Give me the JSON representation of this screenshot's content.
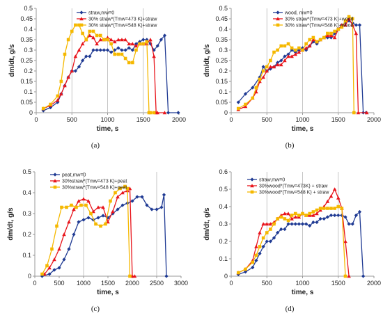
{
  "figure": {
    "panels": [
      {
        "caption": "(a)",
        "xlabel": "time, s",
        "ylabel": "dm/dt, g/s",
        "xlim": [
          0,
          2000
        ],
        "ylim": [
          0,
          0.5
        ],
        "xticks": [
          0,
          500,
          1000,
          1500,
          2000
        ],
        "yticks": [
          0,
          0.05,
          0.1,
          0.15,
          0.2,
          0.25,
          0.3,
          0.35,
          0.4,
          0.45,
          0.5
        ],
        "vlines": [
          500,
          1000,
          1500
        ]
      },
      {
        "caption": "(b)",
        "xlabel": "time, s",
        "ylabel": "dm/dt, g/s",
        "xlim": [
          0,
          2000
        ],
        "ylim": [
          0,
          0.5
        ],
        "xticks": [
          0,
          500,
          1000,
          1500,
          2000
        ],
        "yticks": [
          0,
          0.05,
          0.1,
          0.15,
          0.2,
          0.25,
          0.3,
          0.35,
          0.4,
          0.45,
          0.5
        ],
        "vlines": [
          500,
          1000,
          1500
        ]
      },
      {
        "caption": "(c)",
        "xlabel": "time, s",
        "ylabel": "dm/dt, g/s",
        "xlim": [
          0,
          3000
        ],
        "ylim": [
          0,
          0.5
        ],
        "xticks": [
          0,
          500,
          1000,
          1500,
          2000,
          2500,
          3000
        ],
        "yticks": [
          0,
          0.1,
          0.2,
          0.3,
          0.4,
          0.5
        ],
        "vlines": [
          1000,
          2500
        ]
      },
      {
        "caption": "(d)",
        "xlabel": "time, s",
        "ylabel": "dm/dt, g/s",
        "xlim": [
          0,
          2000
        ],
        "ylim": [
          0,
          0.6
        ],
        "xticks": [
          0,
          500,
          1000,
          1500,
          2000
        ],
        "yticks": [
          0,
          0.1,
          0.2,
          0.3,
          0.4,
          0.5,
          0.6
        ],
        "vlines": [
          500,
          1000,
          1500
        ]
      }
    ]
  },
  "chart_data": [
    {
      "type": "line",
      "caption": "(a)",
      "xlabel": "time, s",
      "ylabel": "dm/dt, g/s",
      "xlim": [
        0,
        2000
      ],
      "ylim": [
        0,
        0.5
      ],
      "legend": "top-right",
      "series": [
        {
          "name": "straw,mw=0",
          "color": "#1f3a93",
          "marker": "diamond",
          "x": [
            100,
            200,
            300,
            350,
            400,
            450,
            500,
            550,
            600,
            650,
            700,
            750,
            800,
            850,
            900,
            950,
            1000,
            1050,
            1100,
            1150,
            1200,
            1250,
            1300,
            1350,
            1400,
            1450,
            1500,
            1550,
            1600,
            1650,
            1700,
            1750,
            1800,
            1850,
            1990
          ],
          "y": [
            0.01,
            0.025,
            0.05,
            0.09,
            0.13,
            0.17,
            0.2,
            0.2,
            0.22,
            0.25,
            0.27,
            0.27,
            0.3,
            0.3,
            0.3,
            0.3,
            0.3,
            0.29,
            0.3,
            0.31,
            0.3,
            0.3,
            0.31,
            0.3,
            0.33,
            0.34,
            0.35,
            0.35,
            0.33,
            0.3,
            0.32,
            0.35,
            0.37,
            0.0,
            0.0
          ]
        },
        {
          "name": "30% straw*(Tmw=473 K)+straw",
          "color": "#e8141b",
          "marker": "triangle",
          "x": [
            100,
            200,
            300,
            350,
            400,
            450,
            500,
            550,
            600,
            650,
            700,
            750,
            800,
            850,
            900,
            950,
            1000,
            1050,
            1100,
            1150,
            1200,
            1250,
            1300,
            1350,
            1400,
            1450,
            1500,
            1550,
            1600,
            1650,
            1680,
            1700,
            1800
          ],
          "y": [
            0.02,
            0.035,
            0.06,
            0.09,
            0.13,
            0.17,
            0.2,
            0.27,
            0.3,
            0.33,
            0.35,
            0.37,
            0.36,
            0.33,
            0.35,
            0.35,
            0.36,
            0.35,
            0.34,
            0.35,
            0.35,
            0.35,
            0.33,
            0.33,
            0.32,
            0.33,
            0.33,
            0.33,
            0.35,
            0.27,
            0.0,
            0.0,
            0.0
          ]
        },
        {
          "name": "30% straw*(Tmw=548 K)+straw",
          "color": "#f5b800",
          "marker": "square",
          "x": [
            100,
            200,
            300,
            350,
            400,
            450,
            500,
            550,
            600,
            650,
            700,
            750,
            800,
            850,
            900,
            950,
            1000,
            1050,
            1100,
            1150,
            1200,
            1250,
            1300,
            1350,
            1400,
            1450,
            1500,
            1550,
            1580,
            1600,
            1650
          ],
          "y": [
            0.02,
            0.04,
            0.08,
            0.15,
            0.28,
            0.35,
            0.39,
            0.42,
            0.42,
            0.38,
            0.35,
            0.39,
            0.39,
            0.37,
            0.37,
            0.35,
            0.35,
            0.33,
            0.28,
            0.28,
            0.28,
            0.26,
            0.24,
            0.24,
            0.3,
            0.33,
            0.33,
            0.34,
            0.0,
            0.0,
            0.0
          ]
        }
      ]
    },
    {
      "type": "line",
      "caption": "(b)",
      "xlabel": "time, s",
      "ylabel": "dm/dt, g/s",
      "xlim": [
        0,
        2000
      ],
      "ylim": [
        0,
        0.5
      ],
      "legend": "top-right",
      "series": [
        {
          "name": "wood, mw=0",
          "color": "#1f3a93",
          "marker": "diamond",
          "x": [
            100,
            200,
            300,
            400,
            450,
            500,
            550,
            600,
            650,
            700,
            750,
            800,
            850,
            900,
            950,
            1000,
            1050,
            1100,
            1150,
            1200,
            1250,
            1300,
            1350,
            1400,
            1450,
            1500,
            1550,
            1600,
            1650,
            1700,
            1750,
            1800,
            1850,
            1890
          ],
          "y": [
            0.05,
            0.09,
            0.12,
            0.17,
            0.22,
            0.2,
            0.21,
            0.22,
            0.24,
            0.25,
            0.27,
            0.28,
            0.3,
            0.29,
            0.3,
            0.31,
            0.3,
            0.32,
            0.34,
            0.33,
            0.35,
            0.36,
            0.36,
            0.36,
            0.38,
            0.4,
            0.42,
            0.43,
            0.44,
            0.43,
            0.42,
            0.42,
            0.0,
            0.0
          ]
        },
        {
          "name": "30% straw*(Tmw=473 K)+wood",
          "color": "#e8141b",
          "marker": "triangle",
          "x": [
            100,
            200,
            300,
            350,
            400,
            450,
            500,
            550,
            600,
            650,
            700,
            750,
            800,
            850,
            900,
            950,
            1000,
            1050,
            1100,
            1150,
            1200,
            1250,
            1300,
            1350,
            1400,
            1450,
            1500,
            1550,
            1600,
            1650,
            1700,
            1750,
            1780,
            1900
          ],
          "y": [
            0.015,
            0.03,
            0.07,
            0.1,
            0.15,
            0.17,
            0.2,
            0.22,
            0.22,
            0.23,
            0.23,
            0.25,
            0.27,
            0.27,
            0.28,
            0.29,
            0.3,
            0.31,
            0.32,
            0.35,
            0.34,
            0.35,
            0.36,
            0.37,
            0.37,
            0.36,
            0.4,
            0.42,
            0.42,
            0.45,
            0.42,
            0.38,
            0.0,
            0.0
          ]
        },
        {
          "name": "30% straw*(Tmw=548 K)+wood",
          "color": "#f5b800",
          "marker": "square",
          "x": [
            100,
            200,
            300,
            350,
            400,
            450,
            500,
            550,
            600,
            650,
            700,
            750,
            800,
            850,
            900,
            950,
            1000,
            1050,
            1100,
            1150,
            1200,
            1250,
            1300,
            1350,
            1400,
            1450,
            1500,
            1550,
            1600,
            1650,
            1700,
            1720
          ],
          "y": [
            0.02,
            0.04,
            0.07,
            0.12,
            0.16,
            0.2,
            0.22,
            0.25,
            0.29,
            0.3,
            0.32,
            0.32,
            0.33,
            0.31,
            0.3,
            0.31,
            0.3,
            0.33,
            0.35,
            0.36,
            0.34,
            0.35,
            0.36,
            0.38,
            0.38,
            0.39,
            0.4,
            0.41,
            0.44,
            0.46,
            0.45,
            0.0
          ]
        }
      ]
    },
    {
      "type": "line",
      "caption": "(c)",
      "xlabel": "time, s",
      "ylabel": "dm/dt, g/s",
      "xlim": [
        0,
        3000
      ],
      "ylim": [
        0,
        0.5
      ],
      "legend": "top-left",
      "series": [
        {
          "name": "peat,mw=0",
          "color": "#1f3a93",
          "marker": "diamond",
          "x": [
            150,
            300,
            400,
            500,
            600,
            700,
            800,
            900,
            1000,
            1100,
            1200,
            1300,
            1400,
            1500,
            1600,
            1700,
            1800,
            1900,
            2000,
            2100,
            2200,
            2300,
            2400,
            2500,
            2600,
            2650,
            2700
          ],
          "y": [
            0.0,
            0.01,
            0.03,
            0.04,
            0.08,
            0.13,
            0.2,
            0.26,
            0.27,
            0.28,
            0.27,
            0.28,
            0.29,
            0.28,
            0.3,
            0.32,
            0.34,
            0.35,
            0.36,
            0.38,
            0.38,
            0.34,
            0.32,
            0.32,
            0.33,
            0.39,
            0.0
          ]
        },
        {
          "name": "30%straw*(Tmw=473 K)+peat",
          "color": "#e8141b",
          "marker": "triangle",
          "x": [
            200,
            300,
            400,
            500,
            600,
            700,
            800,
            900,
            1000,
            1100,
            1200,
            1300,
            1400,
            1500,
            1600,
            1700,
            1800,
            1900,
            1950,
            2000,
            2050
          ],
          "y": [
            0.01,
            0.04,
            0.08,
            0.13,
            0.2,
            0.26,
            0.32,
            0.36,
            0.37,
            0.36,
            0.31,
            0.33,
            0.33,
            0.26,
            0.31,
            0.38,
            0.4,
            0.41,
            0.42,
            0.0,
            0.0
          ]
        },
        {
          "name": "30%straw*(Tmw=548 K)+peat",
          "color": "#f5b800",
          "marker": "square",
          "x": [
            150,
            250,
            350,
            450,
            550,
            650,
            750,
            850,
            950,
            1050,
            1150,
            1250,
            1350,
            1450,
            1550,
            1650,
            1750,
            1850,
            1900,
            1950
          ],
          "y": [
            0.01,
            0.05,
            0.13,
            0.24,
            0.33,
            0.33,
            0.34,
            0.33,
            0.34,
            0.34,
            0.3,
            0.25,
            0.24,
            0.25,
            0.36,
            0.4,
            0.42,
            0.43,
            0.42,
            0.0
          ]
        }
      ]
    },
    {
      "type": "line",
      "caption": "(d)",
      "xlabel": "time, s",
      "ylabel": "dm/dt, g/s",
      "xlim": [
        0,
        2000
      ],
      "ylim": [
        0,
        0.6
      ],
      "legend": "top-right",
      "series": [
        {
          "name": "straw,mw=0",
          "color": "#1f3a93",
          "marker": "diamond",
          "x": [
            100,
            200,
            300,
            350,
            400,
            450,
            500,
            550,
            600,
            650,
            700,
            750,
            800,
            850,
            900,
            950,
            1000,
            1050,
            1100,
            1150,
            1200,
            1250,
            1300,
            1350,
            1400,
            1450,
            1500,
            1550,
            1600,
            1650,
            1700,
            1750,
            1800,
            1850
          ],
          "y": [
            0.01,
            0.025,
            0.05,
            0.09,
            0.13,
            0.17,
            0.2,
            0.2,
            0.22,
            0.25,
            0.27,
            0.27,
            0.3,
            0.3,
            0.3,
            0.3,
            0.3,
            0.3,
            0.29,
            0.31,
            0.31,
            0.33,
            0.33,
            0.34,
            0.35,
            0.35,
            0.35,
            0.35,
            0.34,
            0.3,
            0.3,
            0.35,
            0.37,
            0.0
          ]
        },
        {
          "name": "30%wood*(Tmw=473K) + straw",
          "color": "#e8141b",
          "marker": "triangle",
          "x": [
            100,
            200,
            300,
            350,
            400,
            450,
            500,
            550,
            600,
            650,
            700,
            750,
            800,
            850,
            900,
            950,
            1000,
            1050,
            1100,
            1150,
            1200,
            1250,
            1300,
            1350,
            1400,
            1450,
            1500,
            1550,
            1600,
            1650
          ],
          "y": [
            0.02,
            0.04,
            0.09,
            0.17,
            0.25,
            0.3,
            0.3,
            0.3,
            0.31,
            0.33,
            0.35,
            0.36,
            0.36,
            0.33,
            0.34,
            0.34,
            0.36,
            0.35,
            0.35,
            0.35,
            0.36,
            0.38,
            0.4,
            0.43,
            0.46,
            0.5,
            0.45,
            0.39,
            0.2,
            0.0
          ]
        },
        {
          "name": "30%wood*(Tmw=548 K) + straw",
          "color": "#f5b800",
          "marker": "square",
          "x": [
            100,
            200,
            300,
            350,
            400,
            450,
            500,
            550,
            600,
            650,
            700,
            750,
            800,
            850,
            900,
            950,
            1000,
            1050,
            1100,
            1150,
            1200,
            1250,
            1300,
            1350,
            1400,
            1450,
            1500,
            1550,
            1600
          ],
          "y": [
            0.02,
            0.04,
            0.08,
            0.12,
            0.17,
            0.22,
            0.25,
            0.27,
            0.3,
            0.33,
            0.34,
            0.33,
            0.32,
            0.35,
            0.36,
            0.35,
            0.36,
            0.35,
            0.36,
            0.37,
            0.38,
            0.39,
            0.39,
            0.39,
            0.39,
            0.39,
            0.4,
            0.39,
            0.0
          ]
        }
      ]
    }
  ]
}
